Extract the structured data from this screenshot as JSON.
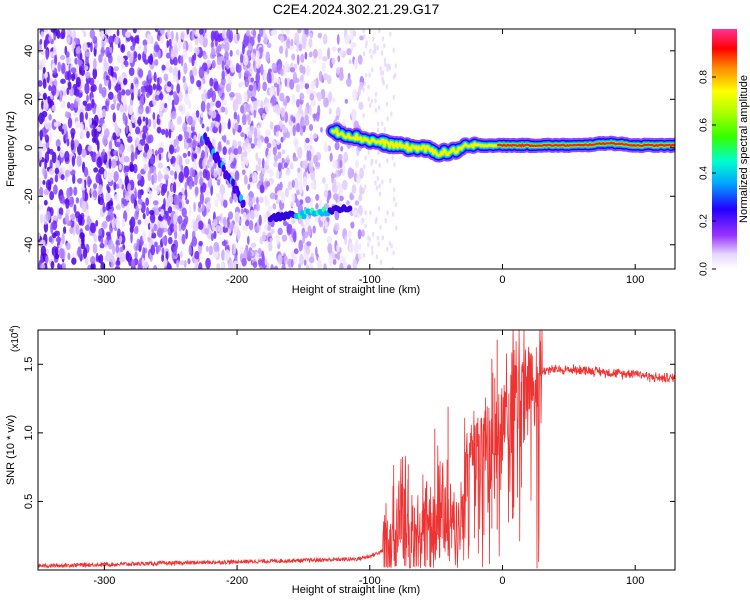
{
  "figure": {
    "title": "C2E4.2024.302.21.29.G17"
  },
  "chart_data": [
    {
      "type": "heatmap",
      "title": "C2E4.2024.302.21.29.G17",
      "xlabel": "Height of straight line (km)",
      "ylabel": "Frequency (Hz)",
      "xlim": [
        -350,
        130
      ],
      "ylim": [
        -50,
        49
      ],
      "x_ticks": [
        -300,
        -200,
        -100,
        0,
        100
      ],
      "y_ticks": [
        -40,
        -20,
        0,
        20,
        40
      ],
      "colorbar": {
        "label": "Normalized spectral amplitude",
        "range": [
          0,
          1
        ],
        "ticks": [
          "0.0",
          "0.2",
          "0.4",
          "0.6",
          "0.8"
        ],
        "colormap": [
          "#ffffff",
          "#cc99ff",
          "#6600ff",
          "#0000ff",
          "#00ccff",
          "#00ff66",
          "#66ff00",
          "#ffff00",
          "#ff9900",
          "#ff0000",
          "#ff33aa"
        ]
      },
      "features": {
        "noise_region_x": [
          -350,
          -105
        ],
        "carrier_ridge": {
          "x": [
            -128,
            -115,
            -100,
            -90,
            -80,
            -70,
            -60,
            -50,
            -40,
            -30,
            -20,
            -10,
            0,
            20,
            40,
            60,
            80,
            100,
            130
          ],
          "y": [
            7,
            5,
            3,
            2,
            1,
            0,
            0,
            -2,
            -2,
            0,
            1,
            1,
            1,
            1,
            1,
            1,
            2,
            1,
            1
          ]
        },
        "streak_x": [
          -225,
          -195
        ],
        "streak_y": [
          5,
          -23
        ],
        "lower_band_x": [
          -175,
          -115
        ],
        "lower_band_y": [
          -29,
          -25
        ]
      }
    },
    {
      "type": "line",
      "xlabel": "Height of straight line (km)",
      "ylabel": "SNR (10 * v/v)",
      "y_multiplier_label": "(x10",
      "y_multiplier_exp": "4",
      "y_multiplier_close": ")",
      "xlim": [
        -350,
        130
      ],
      "ylim": [
        0,
        1.75
      ],
      "x_ticks": [
        -300,
        -200,
        -100,
        0,
        100
      ],
      "y_ticks": [
        "0.5",
        "1.0",
        "1.5"
      ],
      "series": [
        {
          "color": "#ee3333",
          "x": [
            -350,
            -300,
            -250,
            -200,
            -150,
            -110,
            -100,
            -90,
            -80,
            -75,
            -70,
            -65,
            -60,
            -55,
            -50,
            -45,
            -40,
            -35,
            -30,
            -25,
            -20,
            -15,
            -10,
            -5,
            0,
            5,
            10,
            15,
            20,
            25,
            30,
            35,
            40,
            50,
            60,
            70,
            80,
            90,
            100,
            110,
            120,
            130
          ],
          "y": [
            0.03,
            0.04,
            0.05,
            0.06,
            0.07,
            0.08,
            0.1,
            0.14,
            0.3,
            0.45,
            0.28,
            0.2,
            0.35,
            0.25,
            0.4,
            0.5,
            0.3,
            0.2,
            0.55,
            0.75,
            0.9,
            0.8,
            1.05,
            0.95,
            1.1,
            1.2,
            1.3,
            1.35,
            1.4,
            1.43,
            1.45,
            1.46,
            1.46,
            1.46,
            1.46,
            1.45,
            1.44,
            1.43,
            1.44,
            1.41,
            1.4,
            1.4
          ],
          "peaks": [
            {
              "x": -71,
              "y": 0.77
            },
            {
              "x": -51,
              "y": 1.03
            },
            {
              "x": -41,
              "y": 1.19
            },
            {
              "x": -14,
              "y": 1.02
            },
            {
              "x": -8,
              "y": 1.54
            },
            {
              "x": -4,
              "y": 1.68
            },
            {
              "x": 8,
              "y": 1.77
            }
          ]
        }
      ]
    }
  ]
}
